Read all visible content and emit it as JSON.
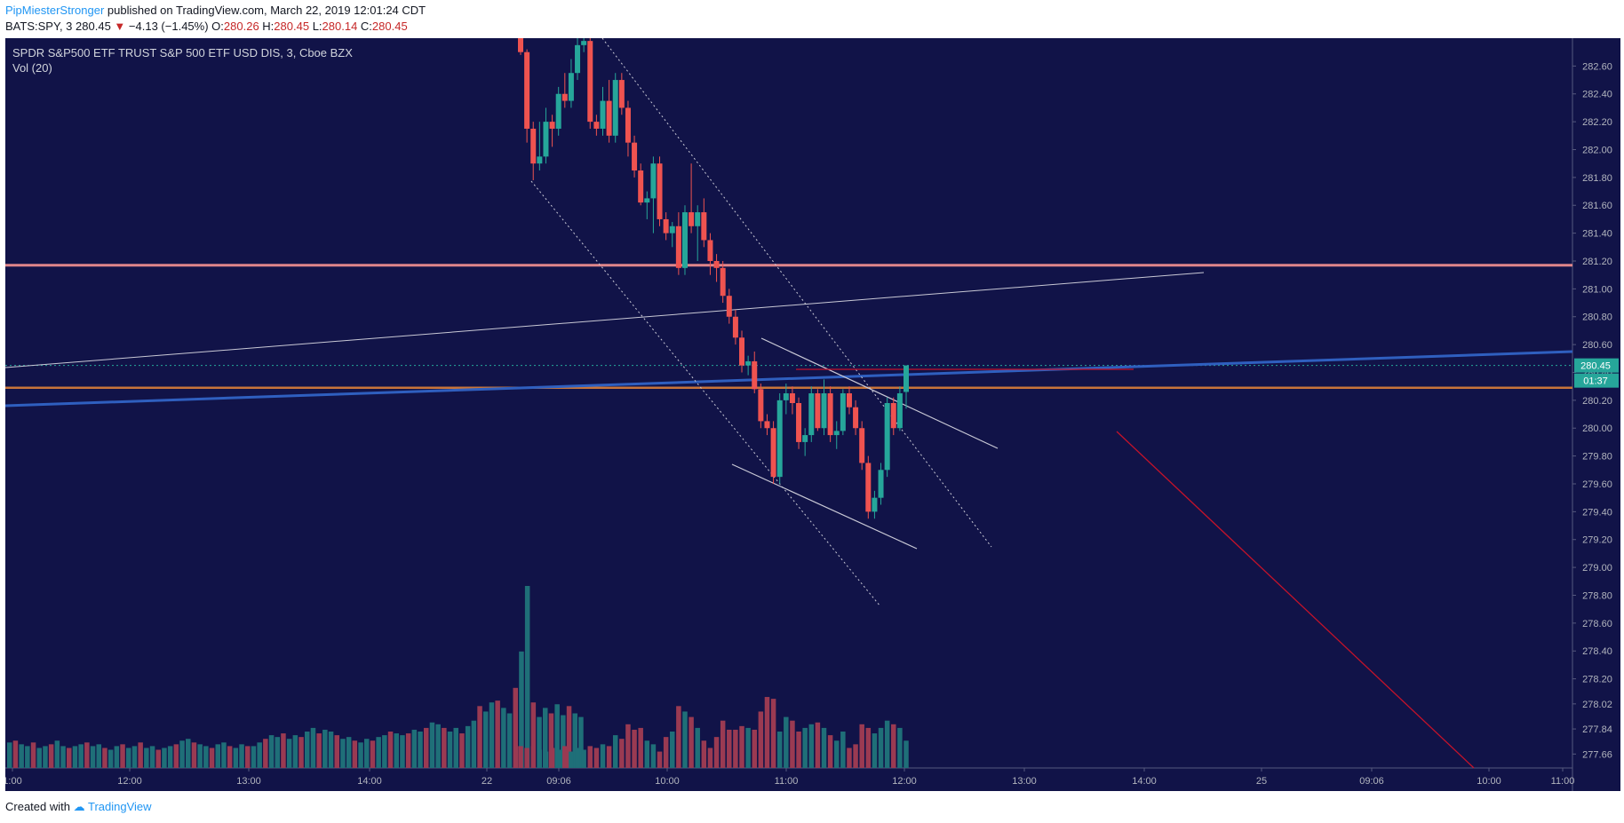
{
  "header": {
    "author": "PipMiesterStronger",
    "published": "published on TradingView.com, March 22, 2019 12:01:24 CDT"
  },
  "quote": {
    "symbol": "BATS:SPY, 3",
    "last": "280.45",
    "change": "−4.13 (−1.45%)",
    "o_label": "O:",
    "o": "280.26",
    "h_label": "H:",
    "h": "280.45",
    "l_label": "L:",
    "l": "280.14",
    "c_label": "C:",
    "c": "280.45"
  },
  "pane": {
    "title": "SPDR S&P500 ETF TRUST S&P 500 ETF USD DIS, 3, Cboe BZX",
    "volume_label": "Vol (20)",
    "price_tag": "280.45",
    "countdown_tag": "01:37"
  },
  "footer": {
    "created_with": "Created with",
    "brand": "TradingView"
  },
  "colors": {
    "background": "#111348",
    "up": "#26a69a",
    "down": "#ef5350",
    "vol_up": "#1f6f78",
    "vol_down": "#9a3a52",
    "axis_bg": "#111348",
    "axis_text": "#b2b5be",
    "resistance": "#e0868b",
    "blue_trend": "#2f5fbf",
    "orange_line": "#c8743a",
    "red_line": "#c4122a"
  },
  "chart_data": {
    "type": "candlestick",
    "y_axis_ticks": [
      "282.60",
      "282.40",
      "282.20",
      "282.00",
      "281.80",
      "281.60",
      "281.40",
      "281.20",
      "281.00",
      "280.80",
      "280.60",
      "280.40",
      "280.20",
      "280.00",
      "279.80",
      "279.60",
      "279.40",
      "279.20",
      "279.00",
      "278.80",
      "278.60",
      "278.40",
      "278.20",
      "278.02",
      "277.84",
      "277.66"
    ],
    "x_axis_ticks": [
      "1:00",
      "12:00",
      "13:00",
      "14:00",
      "22",
      "09:06",
      "10:00",
      "11:00",
      "12:00",
      "13:00",
      "14:00",
      "25",
      "09:06",
      "10:00",
      "11:00"
    ],
    "ylim": [
      277.56,
      282.8
    ],
    "horizontal_levels": [
      281.17,
      280.29
    ],
    "last_price": 280.45,
    "candles": [
      {
        "o": 282.8,
        "h": 282.8,
        "l": 282.68,
        "c": 282.7
      },
      {
        "o": 282.7,
        "h": 282.72,
        "l": 282.05,
        "c": 282.15
      },
      {
        "o": 282.15,
        "h": 282.2,
        "l": 281.78,
        "c": 281.9
      },
      {
        "o": 281.9,
        "h": 282.2,
        "l": 281.85,
        "c": 281.95
      },
      {
        "o": 281.95,
        "h": 282.3,
        "l": 281.9,
        "c": 282.2
      },
      {
        "o": 282.2,
        "h": 282.25,
        "l": 282.02,
        "c": 282.15
      },
      {
        "o": 282.15,
        "h": 282.45,
        "l": 282.1,
        "c": 282.4
      },
      {
        "o": 282.4,
        "h": 282.55,
        "l": 282.3,
        "c": 282.35
      },
      {
        "o": 282.35,
        "h": 282.65,
        "l": 282.3,
        "c": 282.55
      },
      {
        "o": 282.55,
        "h": 282.8,
        "l": 282.5,
        "c": 282.75
      },
      {
        "o": 282.75,
        "h": 282.8,
        "l": 282.7,
        "c": 282.78
      },
      {
        "o": 282.78,
        "h": 282.8,
        "l": 282.15,
        "c": 282.2
      },
      {
        "o": 282.2,
        "h": 282.25,
        "l": 282.1,
        "c": 282.15
      },
      {
        "o": 282.15,
        "h": 282.45,
        "l": 282.1,
        "c": 282.35
      },
      {
        "o": 282.35,
        "h": 282.5,
        "l": 282.05,
        "c": 282.1
      },
      {
        "o": 282.1,
        "h": 282.55,
        "l": 282.05,
        "c": 282.5
      },
      {
        "o": 282.5,
        "h": 282.55,
        "l": 282.25,
        "c": 282.3
      },
      {
        "o": 282.3,
        "h": 282.35,
        "l": 281.95,
        "c": 282.05
      },
      {
        "o": 282.05,
        "h": 282.1,
        "l": 281.8,
        "c": 281.85
      },
      {
        "o": 281.85,
        "h": 281.9,
        "l": 281.6,
        "c": 281.62
      },
      {
        "o": 281.62,
        "h": 281.7,
        "l": 281.5,
        "c": 281.65
      },
      {
        "o": 281.65,
        "h": 281.95,
        "l": 281.4,
        "c": 281.9
      },
      {
        "o": 281.9,
        "h": 281.95,
        "l": 281.45,
        "c": 281.5
      },
      {
        "o": 281.5,
        "h": 281.55,
        "l": 281.35,
        "c": 281.4
      },
      {
        "o": 281.4,
        "h": 281.48,
        "l": 281.3,
        "c": 281.45
      },
      {
        "o": 281.45,
        "h": 281.55,
        "l": 281.1,
        "c": 281.15
      },
      {
        "o": 281.15,
        "h": 281.6,
        "l": 281.1,
        "c": 281.55
      },
      {
        "o": 281.55,
        "h": 281.9,
        "l": 281.4,
        "c": 281.45
      },
      {
        "o": 281.45,
        "h": 281.6,
        "l": 281.2,
        "c": 281.55
      },
      {
        "o": 281.55,
        "h": 281.65,
        "l": 281.3,
        "c": 281.35
      },
      {
        "o": 281.35,
        "h": 281.4,
        "l": 281.1,
        "c": 281.2
      },
      {
        "o": 281.2,
        "h": 281.25,
        "l": 281.05,
        "c": 281.15
      },
      {
        "o": 281.15,
        "h": 281.2,
        "l": 280.9,
        "c": 280.95
      },
      {
        "o": 280.95,
        "h": 281.0,
        "l": 280.75,
        "c": 280.8
      },
      {
        "o": 280.8,
        "h": 280.85,
        "l": 280.6,
        "c": 280.65
      },
      {
        "o": 280.65,
        "h": 280.7,
        "l": 280.4,
        "c": 280.45
      },
      {
        "o": 280.45,
        "h": 280.52,
        "l": 280.38,
        "c": 280.48
      },
      {
        "o": 280.48,
        "h": 280.55,
        "l": 280.25,
        "c": 280.28
      },
      {
        "o": 280.28,
        "h": 280.32,
        "l": 280.0,
        "c": 280.05
      },
      {
        "o": 280.05,
        "h": 280.1,
        "l": 279.95,
        "c": 280.0
      },
      {
        "o": 280.0,
        "h": 280.05,
        "l": 279.6,
        "c": 279.65
      },
      {
        "o": 279.65,
        "h": 280.25,
        "l": 279.6,
        "c": 280.2
      },
      {
        "o": 280.2,
        "h": 280.32,
        "l": 280.1,
        "c": 280.25
      },
      {
        "o": 280.25,
        "h": 280.3,
        "l": 280.1,
        "c": 280.18
      },
      {
        "o": 280.18,
        "h": 280.22,
        "l": 279.85,
        "c": 279.9
      },
      {
        "o": 279.9,
        "h": 280.0,
        "l": 279.8,
        "c": 279.95
      },
      {
        "o": 279.95,
        "h": 280.3,
        "l": 279.9,
        "c": 280.25
      },
      {
        "o": 280.25,
        "h": 280.28,
        "l": 279.98,
        "c": 280.0
      },
      {
        "o": 280.0,
        "h": 280.35,
        "l": 279.95,
        "c": 280.25
      },
      {
        "o": 280.25,
        "h": 280.3,
        "l": 279.9,
        "c": 279.95
      },
      {
        "o": 279.95,
        "h": 280.05,
        "l": 279.85,
        "c": 279.98
      },
      {
        "o": 279.98,
        "h": 280.28,
        "l": 279.95,
        "c": 280.25
      },
      {
        "o": 280.25,
        "h": 280.3,
        "l": 280.1,
        "c": 280.15
      },
      {
        "o": 280.15,
        "h": 280.2,
        "l": 279.95,
        "c": 280.0
      },
      {
        "o": 280.0,
        "h": 280.05,
        "l": 279.7,
        "c": 279.75
      },
      {
        "o": 279.75,
        "h": 279.8,
        "l": 279.35,
        "c": 279.4
      },
      {
        "o": 279.4,
        "h": 279.55,
        "l": 279.35,
        "c": 279.5
      },
      {
        "o": 279.5,
        "h": 279.75,
        "l": 279.45,
        "c": 279.7
      },
      {
        "o": 279.7,
        "h": 280.22,
        "l": 279.65,
        "c": 280.18
      },
      {
        "o": 280.18,
        "h": 280.22,
        "l": 279.95,
        "c": 280.0
      },
      {
        "o": 280.0,
        "h": 280.3,
        "l": 279.98,
        "c": 280.25
      },
      {
        "o": 280.26,
        "h": 280.45,
        "l": 280.14,
        "c": 280.45
      }
    ],
    "volume_relative": [
      0.12,
      0.11,
      0.12,
      0.1,
      0.09,
      0.11,
      0.1,
      0.12,
      0.09,
      0.11,
      0.1,
      0.12,
      0.11,
      0.13,
      0.12,
      0.18,
      0.16,
      0.24,
      0.21,
      0.22,
      0.15,
      0.13,
      0.09,
      0.17,
      0.2,
      0.34,
      0.31,
      0.28,
      0.22,
      0.15,
      0.11,
      0.17,
      0.26,
      0.21,
      0.21,
      0.23,
      0.22,
      0.21,
      0.31,
      0.39,
      0.38,
      0.2,
      0.28,
      0.26,
      0.2,
      0.22,
      0.24,
      0.25,
      0.22,
      0.18,
      0.15,
      0.2,
      0.11,
      0.13,
      0.24,
      0.22,
      0.19,
      0.22,
      0.26,
      0.24,
      0.22,
      0.15
    ],
    "volume_prefix_relative": [
      0.14,
      0.15,
      0.13,
      0.12,
      0.14,
      0.11,
      0.12,
      0.13,
      0.15,
      0.12,
      0.11,
      0.12,
      0.13,
      0.14,
      0.12,
      0.13,
      0.11,
      0.1,
      0.12,
      0.13,
      0.11,
      0.12,
      0.14,
      0.11,
      0.12,
      0.1,
      0.11,
      0.12,
      0.13,
      0.15,
      0.16,
      0.14,
      0.13,
      0.12,
      0.11,
      0.13,
      0.14,
      0.12,
      0.11,
      0.13,
      0.12,
      0.12,
      0.14,
      0.16,
      0.18,
      0.17,
      0.19,
      0.16,
      0.18,
      0.17,
      0.2,
      0.22,
      0.19,
      0.21,
      0.2,
      0.18,
      0.16,
      0.17,
      0.15,
      0.14,
      0.16,
      0.15,
      0.17,
      0.18,
      0.2,
      0.19,
      0.18,
      0.19,
      0.21,
      0.2,
      0.22,
      0.25,
      0.24,
      0.22,
      0.2,
      0.22,
      0.19,
      0.23,
      0.26,
      0.34,
      0.31,
      0.36,
      0.37,
      0.33,
      0.3,
      0.44,
      0.64,
      1.0,
      0.36,
      0.28,
      0.33,
      0.3,
      0.35,
      0.29,
      0.34,
      0.3,
      0.28
    ]
  }
}
